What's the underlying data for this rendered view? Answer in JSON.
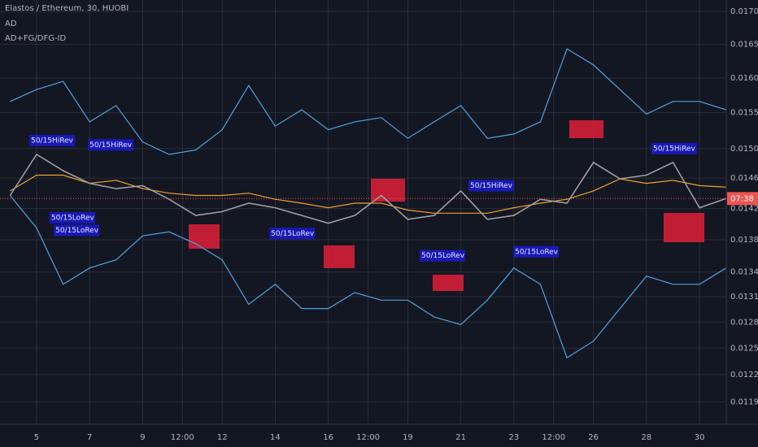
{
  "chart_data": {
    "type": "line",
    "title": "Elastos / Ethereum, 30, HUOBI",
    "subtitle": "AD",
    "indicator": "AD+FG/DFG-ID",
    "log_scale": true,
    "grid": true,
    "x": [
      4,
      5,
      6,
      7,
      8,
      9,
      10,
      11,
      12,
      13,
      14,
      15,
      16,
      17,
      18,
      19,
      20,
      21,
      22,
      23,
      24,
      25,
      26,
      27,
      28,
      29,
      30,
      31
    ],
    "xlim": [
      3.62,
      31.01
    ],
    "xticks": [
      5,
      7,
      9,
      {
        "value": 10.5,
        "label": "12:00"
      },
      12,
      14,
      16,
      {
        "value": 17.5,
        "label": "12:00"
      },
      19,
      21,
      23,
      {
        "value": 24.5,
        "label": "12:00"
      },
      26,
      28,
      30
    ],
    "ylim": [
      0.01166,
      0.01718
    ],
    "yticks": [
      {
        "value": 0.017,
        "label": "0.01700000"
      },
      {
        "value": 0.0165,
        "label": "0.01650000"
      },
      {
        "value": 0.016,
        "label": "0.01600000"
      },
      {
        "value": 0.0155,
        "label": "0.01550000"
      },
      {
        "value": 0.015,
        "label": "0.01500000"
      },
      {
        "value": 0.0146,
        "label": "0.01460000"
      },
      {
        "value": 0.0142,
        "label": "0.01420000"
      },
      {
        "value": 0.0138,
        "label": "0.01380000"
      },
      {
        "value": 0.0134,
        "label": "0.01340000"
      },
      {
        "value": 0.0131,
        "label": "0.01310000"
      },
      {
        "value": 0.0128,
        "label": "0.01280000"
      },
      {
        "value": 0.0125,
        "label": "0.01250000"
      },
      {
        "value": 0.0122,
        "label": "0.01220000"
      },
      {
        "value": 0.0119,
        "label": "0.01190000"
      }
    ],
    "series": [
      {
        "color": "#4ea3e0",
        "values": [
          0.01566,
          0.01583,
          0.01595,
          0.01537,
          0.0156,
          0.01509,
          0.01492,
          0.01498,
          0.01526,
          0.01589,
          0.01531,
          0.01554,
          0.01526,
          0.01537,
          0.01543,
          0.01514,
          0.01537,
          0.0156,
          0.01514,
          0.0152,
          0.01537,
          0.01643,
          0.01619,
          0.01583,
          0.01548,
          0.01566,
          0.01566,
          0.01554
        ]
      },
      {
        "color": "#4ea3e0",
        "values": [
          0.01437,
          0.01395,
          0.01325,
          0.01345,
          0.01355,
          0.01385,
          0.0139,
          0.01375,
          0.01355,
          0.01301,
          0.01325,
          0.01296,
          0.01296,
          0.01315,
          0.01306,
          0.01306,
          0.01286,
          0.01277,
          0.01306,
          0.01345,
          0.01325,
          0.01239,
          0.01258,
          0.01296,
          0.01335,
          0.01325,
          0.01325,
          0.01345
        ]
      },
      {
        "color": "#f0a030",
        "values": [
          0.01443,
          0.01464,
          0.01464,
          0.01453,
          0.01457,
          0.01446,
          0.0144,
          0.01437,
          0.01437,
          0.0144,
          0.01432,
          0.01427,
          0.01421,
          0.01427,
          0.01427,
          0.01418,
          0.01414,
          0.01414,
          0.01414,
          0.01421,
          0.01427,
          0.01432,
          0.01443,
          0.01459,
          0.01453,
          0.01457,
          0.0145,
          0.01448
        ]
      },
      {
        "color": "#9e9e9e",
        "values": [
          0.01437,
          0.01492,
          0.0147,
          0.01453,
          0.01446,
          0.0145,
          0.01432,
          0.01411,
          0.01416,
          0.01427,
          0.01421,
          0.01411,
          0.01401,
          0.01411,
          0.01437,
          0.01406,
          0.01411,
          0.01443,
          0.01406,
          0.01411,
          0.01432,
          0.01427,
          0.01481,
          0.01459,
          0.01464,
          0.01481,
          0.01421,
          0.01433
        ]
      }
    ],
    "annotations": [
      {
        "text": "50/15HiRev",
        "x": 4.85,
        "y": 0.01511
      },
      {
        "text": "50/15HiRev",
        "x": 7.06,
        "y": 0.01505
      },
      {
        "text": "50/15LoRev",
        "x": 5.61,
        "y": 0.01408
      },
      {
        "text": "50/15LoRev",
        "x": 5.77,
        "y": 0.01392
      },
      {
        "text": "50/15LoRev",
        "x": 13.9,
        "y": 0.01388
      },
      {
        "text": "50/15LoRev",
        "x": 19.57,
        "y": 0.0136
      },
      {
        "text": "50/15HiRev",
        "x": 21.41,
        "y": 0.0145
      },
      {
        "text": "50/15HiRev",
        "x": 28.31,
        "y": 0.015
      },
      {
        "text": "50/15LoRev",
        "x": 23.1,
        "y": 0.01365
      }
    ],
    "last_value": 0.01433,
    "last_label": "07:38"
  }
}
